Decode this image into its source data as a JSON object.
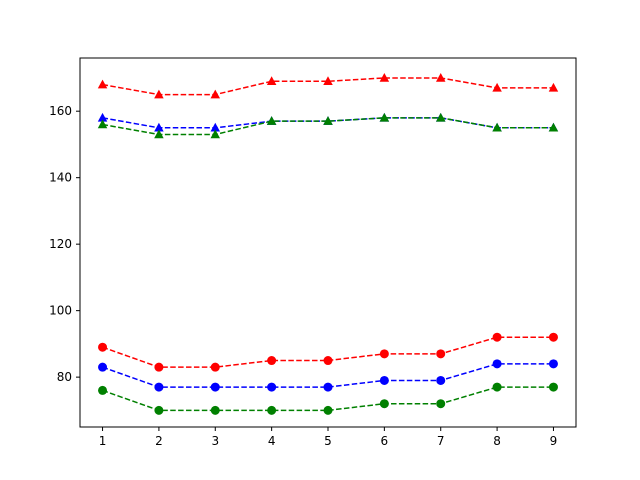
{
  "chart_data": {
    "type": "line",
    "title": "",
    "xlabel": "",
    "ylabel": "",
    "x": [
      1,
      2,
      3,
      4,
      5,
      6,
      7,
      8,
      9
    ],
    "xlim": [
      0.6,
      9.4
    ],
    "ylim": [
      65,
      176
    ],
    "xticks": [
      1,
      2,
      3,
      4,
      5,
      6,
      7,
      8,
      9
    ],
    "yticks": [
      80,
      100,
      120,
      140,
      160
    ],
    "grid": false,
    "legend": "none",
    "line_style": "dashed",
    "series": [
      {
        "color": "#ff0000",
        "marker": "triangle",
        "values": [
          168,
          165,
          165,
          169,
          169,
          170,
          170,
          167,
          167
        ]
      },
      {
        "color": "#0000ff",
        "marker": "triangle",
        "values": [
          158,
          155,
          155,
          157,
          157,
          158,
          158,
          155,
          155
        ]
      },
      {
        "color": "#008000",
        "marker": "triangle",
        "values": [
          156,
          153,
          153,
          157,
          157,
          158,
          158,
          155,
          155
        ]
      },
      {
        "color": "#ff0000",
        "marker": "circle",
        "values": [
          89,
          83,
          83,
          85,
          85,
          87,
          87,
          92,
          92
        ]
      },
      {
        "color": "#0000ff",
        "marker": "circle",
        "values": [
          83,
          77,
          77,
          77,
          77,
          79,
          79,
          84,
          84
        ]
      },
      {
        "color": "#008000",
        "marker": "circle",
        "values": [
          76,
          70,
          70,
          70,
          70,
          72,
          72,
          77,
          77
        ]
      }
    ]
  }
}
